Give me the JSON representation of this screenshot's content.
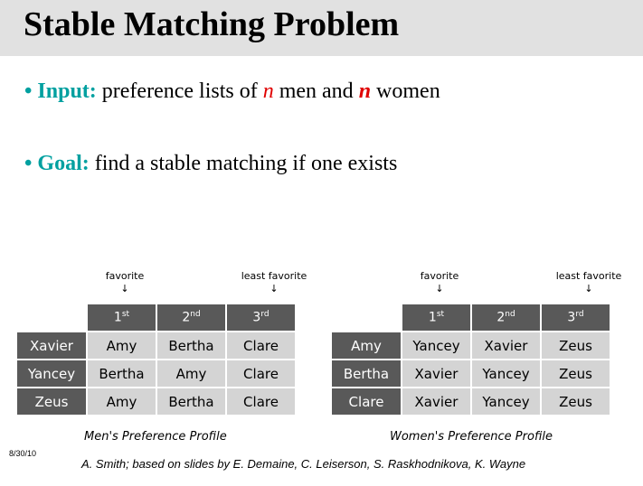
{
  "title": "Stable Matching Problem",
  "bullets": {
    "input": {
      "label": "Input:",
      "text1": "preference lists of ",
      "n1": "n",
      "text2": " men and ",
      "n2": "n",
      "text3": " women"
    },
    "goal": {
      "label": "Goal:",
      "text": "find a stable matching if one exists"
    }
  },
  "annotations": {
    "favorite": "favorite",
    "least_favorite": "least favorite",
    "arrow": "↓"
  },
  "ordinals": [
    {
      "num": "1",
      "sup": "st"
    },
    {
      "num": "2",
      "sup": "nd"
    },
    {
      "num": "3",
      "sup": "rd"
    }
  ],
  "men_table": {
    "caption": "Men's Preference Profile",
    "rows": [
      {
        "name": "Xavier",
        "prefs": [
          "Amy",
          "Bertha",
          "Clare"
        ]
      },
      {
        "name": "Yancey",
        "prefs": [
          "Bertha",
          "Amy",
          "Clare"
        ]
      },
      {
        "name": "Zeus",
        "prefs": [
          "Amy",
          "Bertha",
          "Clare"
        ]
      }
    ]
  },
  "women_table": {
    "caption": "Women's Preference Profile",
    "rows": [
      {
        "name": "Amy",
        "prefs": [
          "Yancey",
          "Xavier",
          "Zeus"
        ]
      },
      {
        "name": "Bertha",
        "prefs": [
          "Xavier",
          "Yancey",
          "Zeus"
        ]
      },
      {
        "name": "Clare",
        "prefs": [
          "Xavier",
          "Yancey",
          "Zeus"
        ]
      }
    ]
  },
  "footer": {
    "date": "8/30/10",
    "credit": "A. Smith; based on slides by E. Demaine, C. Leiserson, S. Raskhodnikova, K. Wayne"
  }
}
